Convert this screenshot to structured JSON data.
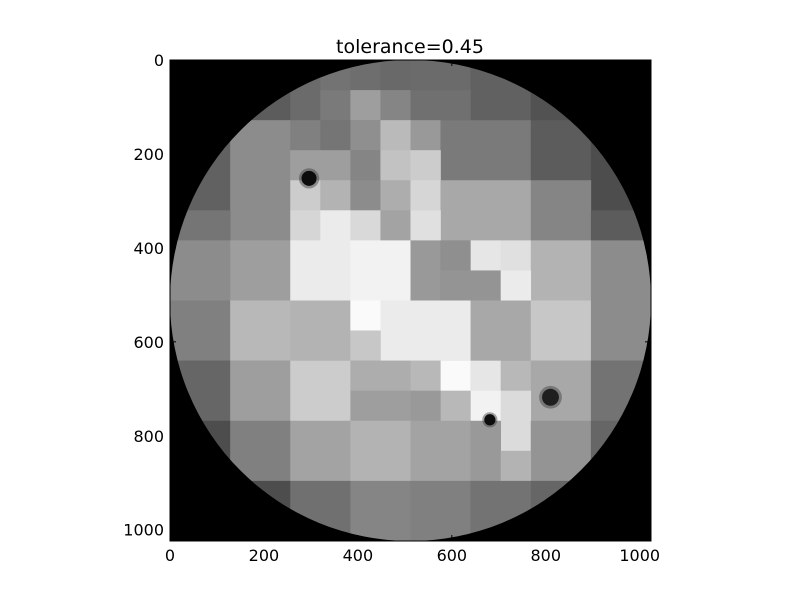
{
  "chart_data": {
    "type": "heatmap",
    "title": "tolerance=0.45",
    "xlabel": "",
    "ylabel": "",
    "xlim": [
      0,
      1024
    ],
    "ylim": [
      1024,
      0
    ],
    "xticks": [
      "0",
      "200",
      "400",
      "600",
      "800",
      "1000"
    ],
    "yticks": [
      "0",
      "200",
      "400",
      "600",
      "800",
      "1000"
    ],
    "colormap": "gray",
    "grid": false,
    "circle": {
      "cx": 512,
      "cy": 512,
      "r": 512,
      "outside_value": 0.0
    },
    "regions": [
      {
        "x0": 0,
        "y0": 0,
        "x1": 128,
        "y1": 128,
        "v": 0.3
      },
      {
        "x0": 128,
        "y0": 0,
        "x1": 256,
        "y1": 128,
        "v": 0.36
      },
      {
        "x0": 256,
        "y0": 0,
        "x1": 320,
        "y1": 128,
        "v": 0.42
      },
      {
        "x0": 320,
        "y0": 0,
        "x1": 384,
        "y1": 64,
        "v": 0.45
      },
      {
        "x0": 384,
        "y0": 0,
        "x1": 448,
        "y1": 64,
        "v": 0.43
      },
      {
        "x0": 448,
        "y0": 0,
        "x1": 512,
        "y1": 64,
        "v": 0.41
      },
      {
        "x0": 512,
        "y0": 0,
        "x1": 640,
        "y1": 64,
        "v": 0.42
      },
      {
        "x0": 640,
        "y0": 0,
        "x1": 768,
        "y1": 128,
        "v": 0.38
      },
      {
        "x0": 768,
        "y0": 0,
        "x1": 1024,
        "y1": 128,
        "v": 0.32
      },
      {
        "x0": 320,
        "y0": 64,
        "x1": 384,
        "y1": 128,
        "v": 0.48
      },
      {
        "x0": 384,
        "y0": 64,
        "x1": 448,
        "y1": 128,
        "v": 0.62
      },
      {
        "x0": 448,
        "y0": 64,
        "x1": 512,
        "y1": 128,
        "v": 0.52
      },
      {
        "x0": 512,
        "y0": 64,
        "x1": 640,
        "y1": 128,
        "v": 0.44
      },
      {
        "x0": 0,
        "y0": 128,
        "x1": 128,
        "y1": 320,
        "v": 0.38
      },
      {
        "x0": 128,
        "y0": 128,
        "x1": 256,
        "y1": 384,
        "v": 0.55
      },
      {
        "x0": 256,
        "y0": 128,
        "x1": 320,
        "y1": 192,
        "v": 0.5
      },
      {
        "x0": 320,
        "y0": 128,
        "x1": 384,
        "y1": 192,
        "v": 0.46
      },
      {
        "x0": 384,
        "y0": 128,
        "x1": 448,
        "y1": 192,
        "v": 0.56
      },
      {
        "x0": 448,
        "y0": 128,
        "x1": 512,
        "y1": 192,
        "v": 0.73
      },
      {
        "x0": 512,
        "y0": 128,
        "x1": 576,
        "y1": 192,
        "v": 0.6
      },
      {
        "x0": 576,
        "y0": 128,
        "x1": 768,
        "y1": 256,
        "v": 0.48
      },
      {
        "x0": 768,
        "y0": 128,
        "x1": 896,
        "y1": 256,
        "v": 0.36
      },
      {
        "x0": 896,
        "y0": 128,
        "x1": 1024,
        "y1": 320,
        "v": 0.3
      },
      {
        "x0": 256,
        "y0": 192,
        "x1": 384,
        "y1": 256,
        "v": 0.62
      },
      {
        "x0": 384,
        "y0": 192,
        "x1": 448,
        "y1": 256,
        "v": 0.52
      },
      {
        "x0": 448,
        "y0": 192,
        "x1": 512,
        "y1": 256,
        "v": 0.76
      },
      {
        "x0": 512,
        "y0": 192,
        "x1": 576,
        "y1": 256,
        "v": 0.8
      },
      {
        "x0": 256,
        "y0": 256,
        "x1": 320,
        "y1": 320,
        "v": 0.8
      },
      {
        "x0": 320,
        "y0": 256,
        "x1": 384,
        "y1": 320,
        "v": 0.7
      },
      {
        "x0": 384,
        "y0": 256,
        "x1": 448,
        "y1": 320,
        "v": 0.55
      },
      {
        "x0": 448,
        "y0": 256,
        "x1": 512,
        "y1": 320,
        "v": 0.68
      },
      {
        "x0": 512,
        "y0": 256,
        "x1": 576,
        "y1": 320,
        "v": 0.84
      },
      {
        "x0": 576,
        "y0": 256,
        "x1": 768,
        "y1": 384,
        "v": 0.66
      },
      {
        "x0": 768,
        "y0": 256,
        "x1": 896,
        "y1": 384,
        "v": 0.52
      },
      {
        "x0": 0,
        "y0": 320,
        "x1": 128,
        "y1": 384,
        "v": 0.46
      },
      {
        "x0": 896,
        "y0": 320,
        "x1": 1024,
        "y1": 384,
        "v": 0.36
      },
      {
        "x0": 256,
        "y0": 320,
        "x1": 320,
        "y1": 384,
        "v": 0.84
      },
      {
        "x0": 320,
        "y0": 320,
        "x1": 384,
        "y1": 384,
        "v": 0.92
      },
      {
        "x0": 384,
        "y0": 320,
        "x1": 448,
        "y1": 384,
        "v": 0.85
      },
      {
        "x0": 448,
        "y0": 320,
        "x1": 512,
        "y1": 384,
        "v": 0.64
      },
      {
        "x0": 512,
        "y0": 320,
        "x1": 576,
        "y1": 384,
        "v": 0.88
      },
      {
        "x0": 0,
        "y0": 384,
        "x1": 128,
        "y1": 512,
        "v": 0.55
      },
      {
        "x0": 128,
        "y0": 384,
        "x1": 256,
        "y1": 512,
        "v": 0.62
      },
      {
        "x0": 256,
        "y0": 384,
        "x1": 384,
        "y1": 512,
        "v": 0.92
      },
      {
        "x0": 384,
        "y0": 384,
        "x1": 512,
        "y1": 512,
        "v": 0.95
      },
      {
        "x0": 512,
        "y0": 384,
        "x1": 576,
        "y1": 512,
        "v": 0.6
      },
      {
        "x0": 576,
        "y0": 384,
        "x1": 640,
        "y1": 448,
        "v": 0.56
      },
      {
        "x0": 640,
        "y0": 384,
        "x1": 704,
        "y1": 448,
        "v": 0.9
      },
      {
        "x0": 704,
        "y0": 384,
        "x1": 768,
        "y1": 448,
        "v": 0.88
      },
      {
        "x0": 768,
        "y0": 384,
        "x1": 896,
        "y1": 512,
        "v": 0.7
      },
      {
        "x0": 896,
        "y0": 384,
        "x1": 1024,
        "y1": 512,
        "v": 0.55
      },
      {
        "x0": 576,
        "y0": 448,
        "x1": 704,
        "y1": 512,
        "v": 0.58
      },
      {
        "x0": 704,
        "y0": 448,
        "x1": 768,
        "y1": 512,
        "v": 0.92
      },
      {
        "x0": 0,
        "y0": 512,
        "x1": 128,
        "y1": 640,
        "v": 0.5
      },
      {
        "x0": 128,
        "y0": 512,
        "x1": 256,
        "y1": 640,
        "v": 0.72
      },
      {
        "x0": 256,
        "y0": 512,
        "x1": 384,
        "y1": 640,
        "v": 0.7
      },
      {
        "x0": 384,
        "y0": 512,
        "x1": 448,
        "y1": 576,
        "v": 0.98
      },
      {
        "x0": 448,
        "y0": 512,
        "x1": 640,
        "y1": 640,
        "v": 0.92
      },
      {
        "x0": 640,
        "y0": 512,
        "x1": 768,
        "y1": 640,
        "v": 0.66
      },
      {
        "x0": 768,
        "y0": 512,
        "x1": 896,
        "y1": 640,
        "v": 0.78
      },
      {
        "x0": 896,
        "y0": 512,
        "x1": 1024,
        "y1": 640,
        "v": 0.55
      },
      {
        "x0": 384,
        "y0": 576,
        "x1": 448,
        "y1": 640,
        "v": 0.78
      },
      {
        "x0": 0,
        "y0": 640,
        "x1": 128,
        "y1": 768,
        "v": 0.4
      },
      {
        "x0": 128,
        "y0": 640,
        "x1": 256,
        "y1": 768,
        "v": 0.62
      },
      {
        "x0": 256,
        "y0": 640,
        "x1": 384,
        "y1": 768,
        "v": 0.8
      },
      {
        "x0": 384,
        "y0": 640,
        "x1": 512,
        "y1": 704,
        "v": 0.68
      },
      {
        "x0": 512,
        "y0": 640,
        "x1": 576,
        "y1": 704,
        "v": 0.72
      },
      {
        "x0": 576,
        "y0": 640,
        "x1": 640,
        "y1": 704,
        "v": 0.98
      },
      {
        "x0": 640,
        "y0": 640,
        "x1": 704,
        "y1": 704,
        "v": 0.9
      },
      {
        "x0": 704,
        "y0": 640,
        "x1": 768,
        "y1": 704,
        "v": 0.72
      },
      {
        "x0": 768,
        "y0": 640,
        "x1": 896,
        "y1": 768,
        "v": 0.66
      },
      {
        "x0": 896,
        "y0": 640,
        "x1": 1024,
        "y1": 768,
        "v": 0.45
      },
      {
        "x0": 384,
        "y0": 704,
        "x1": 512,
        "y1": 768,
        "v": 0.62
      },
      {
        "x0": 512,
        "y0": 704,
        "x1": 576,
        "y1": 768,
        "v": 0.6
      },
      {
        "x0": 576,
        "y0": 704,
        "x1": 640,
        "y1": 768,
        "v": 0.72
      },
      {
        "x0": 640,
        "y0": 704,
        "x1": 704,
        "y1": 768,
        "v": 0.95
      },
      {
        "x0": 704,
        "y0": 704,
        "x1": 768,
        "y1": 832,
        "v": 0.86
      },
      {
        "x0": 0,
        "y0": 768,
        "x1": 128,
        "y1": 896,
        "v": 0.3
      },
      {
        "x0": 128,
        "y0": 768,
        "x1": 256,
        "y1": 896,
        "v": 0.5
      },
      {
        "x0": 256,
        "y0": 768,
        "x1": 384,
        "y1": 896,
        "v": 0.64
      },
      {
        "x0": 384,
        "y0": 768,
        "x1": 512,
        "y1": 896,
        "v": 0.7
      },
      {
        "x0": 512,
        "y0": 768,
        "x1": 640,
        "y1": 896,
        "v": 0.64
      },
      {
        "x0": 640,
        "y0": 768,
        "x1": 704,
        "y1": 896,
        "v": 0.6
      },
      {
        "x0": 768,
        "y0": 768,
        "x1": 896,
        "y1": 896,
        "v": 0.58
      },
      {
        "x0": 896,
        "y0": 768,
        "x1": 1024,
        "y1": 896,
        "v": 0.4
      },
      {
        "x0": 704,
        "y0": 832,
        "x1": 768,
        "y1": 896,
        "v": 0.7
      },
      {
        "x0": 0,
        "y0": 896,
        "x1": 128,
        "y1": 1024,
        "v": 0.2
      },
      {
        "x0": 128,
        "y0": 896,
        "x1": 256,
        "y1": 1024,
        "v": 0.3
      },
      {
        "x0": 256,
        "y0": 896,
        "x1": 384,
        "y1": 1024,
        "v": 0.44
      },
      {
        "x0": 384,
        "y0": 896,
        "x1": 512,
        "y1": 1024,
        "v": 0.52
      },
      {
        "x0": 512,
        "y0": 896,
        "x1": 640,
        "y1": 1024,
        "v": 0.5
      },
      {
        "x0": 640,
        "y0": 896,
        "x1": 768,
        "y1": 1024,
        "v": 0.45
      },
      {
        "x0": 768,
        "y0": 896,
        "x1": 896,
        "y1": 1024,
        "v": 0.4
      },
      {
        "x0": 896,
        "y0": 896,
        "x1": 1024,
        "y1": 1024,
        "v": 0.25
      }
    ],
    "spots": [
      {
        "x": 296,
        "y": 252,
        "r": 16,
        "v": 0.05
      },
      {
        "x": 810,
        "y": 718,
        "r": 18,
        "v": 0.12
      },
      {
        "x": 681,
        "y": 766,
        "r": 12,
        "v": 0.05
      }
    ]
  }
}
